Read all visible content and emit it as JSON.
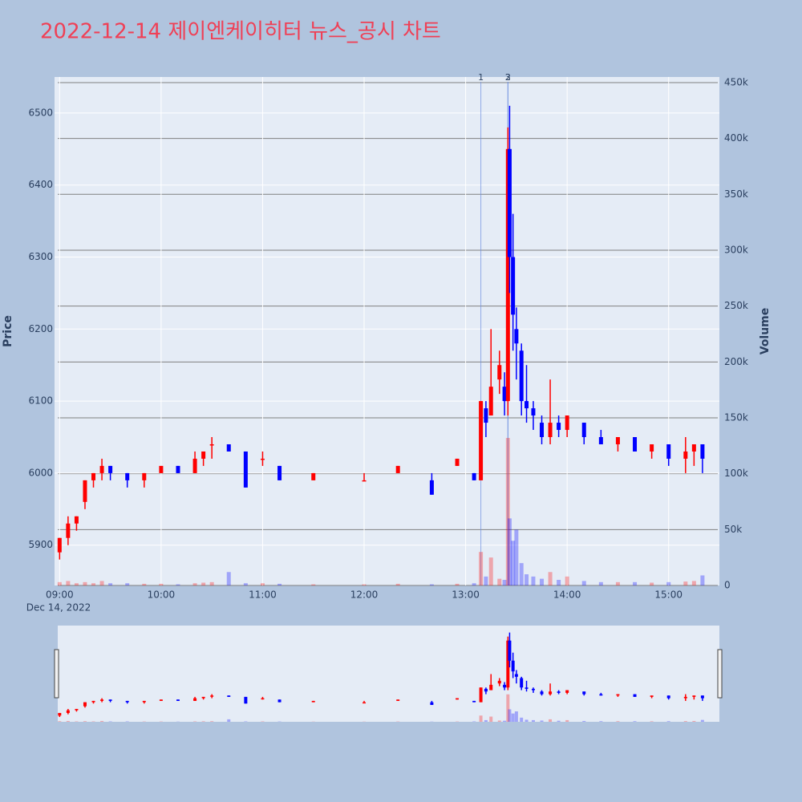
{
  "chart_data": {
    "type": "candlestick",
    "title": "2022-12-14 제이엔케이히터 뉴스_공시 차트",
    "y_title": "Price",
    "y2_title": "Volume",
    "x_date_label": "Dec 14, 2022",
    "increasing_color": "#ff0000",
    "decreasing_color": "#0000ff",
    "grid": true,
    "xlim": [
      "2022-12-14 08:57",
      "2022-12-14 15:30"
    ],
    "xticks": [
      {
        "value": "2022-12-14 09:00",
        "label": "09:00"
      },
      {
        "value": "2022-12-14 10:00",
        "label": "10:00"
      },
      {
        "value": "2022-12-14 11:00",
        "label": "11:00"
      },
      {
        "value": "2022-12-14 12:00",
        "label": "12:00"
      },
      {
        "value": "2022-12-14 13:00",
        "label": "13:00"
      },
      {
        "value": "2022-12-14 14:00",
        "label": "14:00"
      },
      {
        "value": "2022-12-14 15:00",
        "label": "15:00"
      }
    ],
    "ylim": [
      5844,
      6550
    ],
    "yticks": [
      5900,
      6000,
      6100,
      6200,
      6300,
      6400,
      6500
    ],
    "y2lim": [
      0,
      455000
    ],
    "y2ticks": [
      0,
      {
        "value": 50000,
        "label": "50k"
      },
      {
        "value": 100000,
        "label": "100k"
      },
      {
        "value": 150000,
        "label": "150k"
      },
      {
        "value": 200000,
        "label": "200k"
      },
      {
        "value": 250000,
        "label": "250k"
      },
      {
        "value": 300000,
        "label": "300k"
      },
      {
        "value": 350000,
        "label": "350k"
      },
      {
        "value": 400000,
        "label": "400k"
      },
      {
        "value": 450000,
        "label": "450k"
      }
    ],
    "annotations": [
      {
        "x": "2022-12-14 13:09",
        "label": "1"
      },
      {
        "x": "2022-12-14 13:25",
        "label": "2"
      },
      {
        "x": "2022-12-14 13:25",
        "label": "3"
      }
    ],
    "x": [
      "2022-12-14 09:00",
      "2022-12-14 09:05",
      "2022-12-14 09:10",
      "2022-12-14 09:15",
      "2022-12-14 09:20",
      "2022-12-14 09:25",
      "2022-12-14 09:30",
      "2022-12-14 09:40",
      "2022-12-14 09:50",
      "2022-12-14 10:00",
      "2022-12-14 10:10",
      "2022-12-14 10:20",
      "2022-12-14 10:25",
      "2022-12-14 10:30",
      "2022-12-14 10:40",
      "2022-12-14 10:50",
      "2022-12-14 11:00",
      "2022-12-14 11:10",
      "2022-12-14 11:30",
      "2022-12-14 12:00",
      "2022-12-14 12:20",
      "2022-12-14 12:40",
      "2022-12-14 12:55",
      "2022-12-14 13:05",
      "2022-12-14 13:09",
      "2022-12-14 13:12",
      "2022-12-14 13:15",
      "2022-12-14 13:20",
      "2022-12-14 13:23",
      "2022-12-14 13:25",
      "2022-12-14 13:26",
      "2022-12-14 13:28",
      "2022-12-14 13:30",
      "2022-12-14 13:33",
      "2022-12-14 13:36",
      "2022-12-14 13:40",
      "2022-12-14 13:45",
      "2022-12-14 13:50",
      "2022-12-14 13:55",
      "2022-12-14 14:00",
      "2022-12-14 14:10",
      "2022-12-14 14:20",
      "2022-12-14 14:30",
      "2022-12-14 14:40",
      "2022-12-14 14:50",
      "2022-12-14 15:00",
      "2022-12-14 15:10",
      "2022-12-14 15:15",
      "2022-12-14 15:20"
    ],
    "open": [
      5890,
      5910,
      5930,
      5960,
      5990,
      6000,
      6010,
      6000,
      5990,
      6000,
      6010,
      6000,
      6020,
      6040,
      6040,
      6030,
      6020,
      6010,
      5990,
      5990,
      6000,
      5990,
      6010,
      6000,
      5990,
      6090,
      6080,
      6130,
      6120,
      6100,
      6450,
      6300,
      6200,
      6170,
      6100,
      6090,
      6070,
      6050,
      6070,
      6060,
      6070,
      6050,
      6040,
      6050,
      6030,
      6040,
      6020,
      6030,
      6040
    ],
    "high": [
      5910,
      5940,
      5940,
      5990,
      6000,
      6020,
      6010,
      6000,
      6000,
      6010,
      6010,
      6030,
      6030,
      6050,
      6040,
      6030,
      6030,
      6010,
      6000,
      6000,
      6010,
      6000,
      6020,
      6000,
      6100,
      6100,
      6200,
      6170,
      6140,
      6480,
      6510,
      6360,
      6230,
      6180,
      6150,
      6100,
      6080,
      6130,
      6080,
      6080,
      6070,
      6060,
      6050,
      6050,
      6040,
      6040,
      6050,
      6040,
      6040
    ],
    "low": [
      5880,
      5900,
      5920,
      5950,
      5980,
      5990,
      5990,
      5980,
      5980,
      6000,
      6000,
      6000,
      6010,
      6020,
      6030,
      5980,
      6010,
      5990,
      5990,
      5990,
      6000,
      5970,
      6010,
      5990,
      5990,
      6050,
      6080,
      6110,
      6080,
      6080,
      6250,
      6170,
      6130,
      6080,
      6070,
      6060,
      6040,
      6040,
      6050,
      6050,
      6040,
      6040,
      6030,
      6030,
      6020,
      6010,
      6000,
      6010,
      6000
    ],
    "close": [
      5910,
      5930,
      5940,
      5990,
      6000,
      6010,
      6000,
      5990,
      6000,
      6010,
      6000,
      6020,
      6030,
      6040,
      6030,
      5980,
      6020,
      5990,
      6000,
      5990,
      6010,
      5970,
      6020,
      5990,
      6100,
      6070,
      6120,
      6150,
      6100,
      6450,
      6300,
      6220,
      6180,
      6100,
      6090,
      6080,
      6050,
      6070,
      6060,
      6080,
      6050,
      6040,
      6050,
      6030,
      6040,
      6020,
      6030,
      6040,
      6020
    ],
    "volume": [
      3000,
      4000,
      2000,
      3000,
      2000,
      4000,
      2000,
      2000,
      1500,
      1500,
      1000,
      2000,
      2500,
      3000,
      12000,
      2000,
      2000,
      1500,
      1000,
      1000,
      1500,
      1000,
      1500,
      2000,
      30000,
      8000,
      25000,
      6000,
      5000,
      132000,
      60000,
      40000,
      50000,
      20000,
      10000,
      8000,
      6000,
      12000,
      5000,
      8000,
      4000,
      3000,
      3000,
      3000,
      2500,
      3000,
      3500,
      4000,
      9000
    ]
  }
}
